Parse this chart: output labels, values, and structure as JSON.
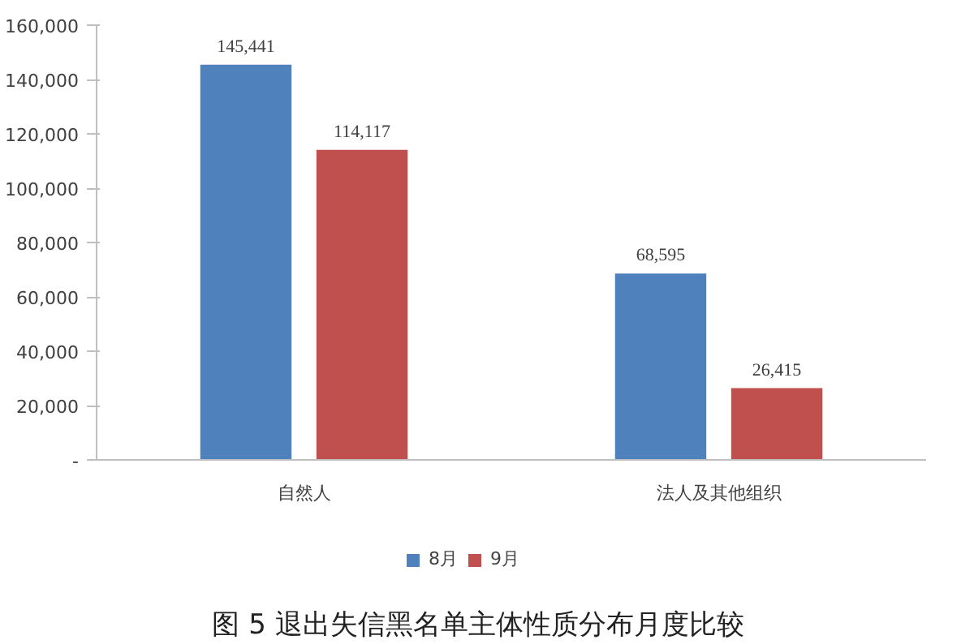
{
  "chart_data": {
    "type": "bar",
    "title": "图 5 退出失信黑名单主体性质分布月度比较",
    "categories": [
      "自然人",
      "法人及其他组织"
    ],
    "series": [
      {
        "name": "8月",
        "color": "#4f81bd",
        "values": [
          145441,
          68595
        ],
        "value_labels": [
          "145,441",
          "68,595"
        ]
      },
      {
        "name": "9月",
        "color": "#c0504d",
        "values": [
          114117,
          26415
        ],
        "value_labels": [
          "114,117",
          "26,415"
        ]
      }
    ],
    "ylim": [
      0,
      160000
    ],
    "yticks": [
      {
        "value": 0,
        "label": "-"
      },
      {
        "value": 20000,
        "label": "20,000"
      },
      {
        "value": 40000,
        "label": "40,000"
      },
      {
        "value": 60000,
        "label": "60,000"
      },
      {
        "value": 80000,
        "label": "80,000"
      },
      {
        "value": 100000,
        "label": "100,000"
      },
      {
        "value": 120000,
        "label": "120,000"
      },
      {
        "value": 140000,
        "label": "140,000"
      },
      {
        "value": 160000,
        "label": "160,000"
      }
    ],
    "grid": false,
    "legend": "bottom"
  }
}
